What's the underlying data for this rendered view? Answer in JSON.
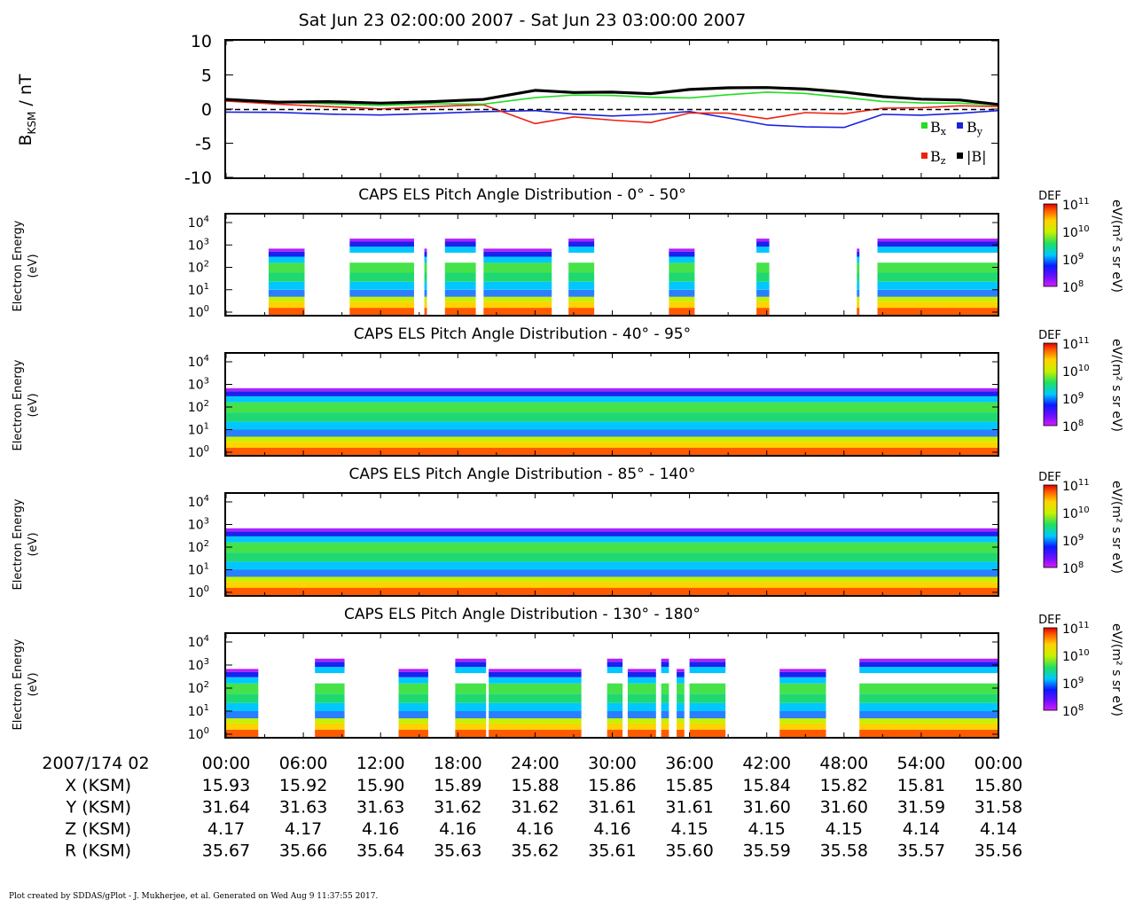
{
  "header": {
    "title": "Sat Jun 23 02:00:00 2007 - Sat Jun 23 03:00:00 2007"
  },
  "footer": {
    "credit": "Plot created by SDDAS/gPlot - J. Mukherjee, et al.  Generated on Wed Aug 9 11:37:55 2017."
  },
  "colors": {
    "bx": "#22dd22",
    "by": "#1a22dd",
    "bz": "#ee2211",
    "bmag": "#000000"
  },
  "chart_data": [
    {
      "type": "line",
      "ylabel": "B_KSM / nT",
      "ylim": [
        -10,
        10
      ],
      "yticks": [
        "10",
        "5",
        "0",
        "-5",
        "-10"
      ],
      "zero_line": "dashed",
      "legend": [
        {
          "label": "B",
          "sub": "x"
        },
        {
          "label": "B",
          "sub": "y"
        },
        {
          "label": "B",
          "sub": "z"
        },
        {
          "label": "|B|",
          "sub": ""
        }
      ],
      "x_minutes": [
        0,
        4,
        8,
        12,
        16,
        20,
        24,
        27,
        30,
        33,
        36,
        39,
        42,
        45,
        48,
        51,
        54,
        57,
        60
      ],
      "series": [
        {
          "name": "Bx",
          "values": [
            1.2,
            1.0,
            0.9,
            0.7,
            0.8,
            0.6,
            1.5,
            2.0,
            2.1,
            1.9,
            1.7,
            2.0,
            2.3,
            2.2,
            1.8,
            1.3,
            1.0,
            0.8,
            0.4
          ]
        },
        {
          "name": "By",
          "values": [
            -0.6,
            -0.5,
            -0.6,
            -0.7,
            -0.6,
            -0.5,
            -0.4,
            -0.8,
            -0.9,
            -0.6,
            -0.3,
            -1.4,
            -2.5,
            -2.7,
            -2.6,
            -0.6,
            -0.8,
            -0.7,
            -0.4
          ]
        },
        {
          "name": "Bz",
          "values": [
            1.0,
            0.7,
            0.5,
            0.2,
            0.4,
            0.5,
            -2.3,
            -1.2,
            -1.5,
            -1.8,
            -0.5,
            -0.7,
            -1.6,
            -0.6,
            -0.6,
            0.3,
            0.3,
            0.4,
            0.2
          ]
        },
        {
          "name": "|B|",
          "values": [
            1.4,
            1.1,
            1.2,
            0.9,
            1.0,
            1.3,
            2.7,
            2.5,
            2.6,
            2.3,
            2.8,
            3.0,
            3.1,
            3.0,
            2.6,
            1.9,
            1.4,
            1.2,
            0.6
          ]
        }
      ]
    },
    {
      "type": "heatmap",
      "title": "CAPS ELS Pitch Angle Distribution - 0° - 50°",
      "ylabel": "Electron Energy (eV)",
      "yscale": "log",
      "yticks": [
        "10^4",
        "10^3",
        "10^2",
        "10^1",
        "10^0"
      ],
      "colorbar": {
        "label": "DEF",
        "unit": "eV/(m² s sr eV)",
        "ticks": [
          "10^11",
          "10^10",
          "10^9",
          "10^8"
        ]
      },
      "data_minutes": [
        [
          3.3,
          6.1
        ],
        [
          9.6,
          14.6
        ],
        [
          15.4,
          15.6
        ],
        [
          17.0,
          19.4
        ],
        [
          20.0,
          25.3
        ],
        [
          26.6,
          28.6
        ],
        [
          34.4,
          36.4
        ],
        [
          41.2,
          42.2
        ],
        [
          49.0,
          49.2
        ],
        [
          50.6,
          60.0
        ]
      ]
    },
    {
      "type": "heatmap",
      "title": "CAPS ELS Pitch Angle Distribution - 40° - 95°",
      "ylabel": "Electron Energy (eV)",
      "yscale": "log",
      "yticks": [
        "10^4",
        "10^3",
        "10^2",
        "10^1",
        "10^0"
      ],
      "colorbar": {
        "label": "DEF",
        "unit": "eV/(m² s sr eV)",
        "ticks": [
          "10^11",
          "10^10",
          "10^9",
          "10^8"
        ]
      },
      "data_minutes": [
        [
          0,
          60
        ]
      ]
    },
    {
      "type": "heatmap",
      "title": "CAPS ELS Pitch Angle Distribution - 85° - 140°",
      "ylabel": "Electron Energy (eV)",
      "yscale": "log",
      "yticks": [
        "10^4",
        "10^3",
        "10^2",
        "10^1",
        "10^0"
      ],
      "colorbar": {
        "label": "DEF",
        "unit": "eV/(m² s sr eV)",
        "ticks": [
          "10^11",
          "10^10",
          "10^9",
          "10^8"
        ]
      },
      "data_minutes": [
        [
          0,
          60
        ]
      ]
    },
    {
      "type": "heatmap",
      "title": "CAPS ELS Pitch Angle Distribution - 130° - 180°",
      "ylabel": "Electron Energy (eV)",
      "yscale": "log",
      "yticks": [
        "10^4",
        "10^3",
        "10^2",
        "10^1",
        "10^0"
      ],
      "colorbar": {
        "label": "DEF",
        "unit": "eV/(m² s sr eV)",
        "ticks": [
          "10^11",
          "10^10",
          "10^9",
          "10^8"
        ]
      },
      "data_minutes": [
        [
          0,
          2.5
        ],
        [
          6.9,
          9.2
        ],
        [
          13.4,
          15.7
        ],
        [
          17.8,
          20.2
        ],
        [
          20.4,
          27.6
        ],
        [
          29.6,
          30.8
        ],
        [
          31.2,
          33.4
        ],
        [
          33.8,
          34.4
        ],
        [
          35.0,
          35.6
        ],
        [
          36.0,
          38.8
        ],
        [
          43.0,
          46.6
        ],
        [
          49.2,
          60.0
        ]
      ]
    }
  ],
  "ephemeris": {
    "date_label": "2007/174 02",
    "times": [
      "00:00",
      "06:00",
      "12:00",
      "18:00",
      "24:00",
      "30:00",
      "36:00",
      "42:00",
      "48:00",
      "54:00",
      "00:00"
    ],
    "rows": [
      {
        "label": "X (KSM)",
        "values": [
          "15.93",
          "15.92",
          "15.90",
          "15.89",
          "15.88",
          "15.86",
          "15.85",
          "15.84",
          "15.82",
          "15.81",
          "15.80"
        ]
      },
      {
        "label": "Y (KSM)",
        "values": [
          "31.64",
          "31.63",
          "31.63",
          "31.62",
          "31.62",
          "31.61",
          "31.61",
          "31.60",
          "31.60",
          "31.59",
          "31.58"
        ]
      },
      {
        "label": "Z (KSM)",
        "values": [
          "4.17",
          "4.17",
          "4.16",
          "4.16",
          "4.16",
          "4.16",
          "4.15",
          "4.15",
          "4.15",
          "4.14",
          "4.14"
        ]
      },
      {
        "label": "R (KSM)",
        "values": [
          "35.67",
          "35.66",
          "35.64",
          "35.63",
          "35.62",
          "35.61",
          "35.60",
          "35.59",
          "35.58",
          "35.57",
          "35.56"
        ]
      }
    ]
  }
}
